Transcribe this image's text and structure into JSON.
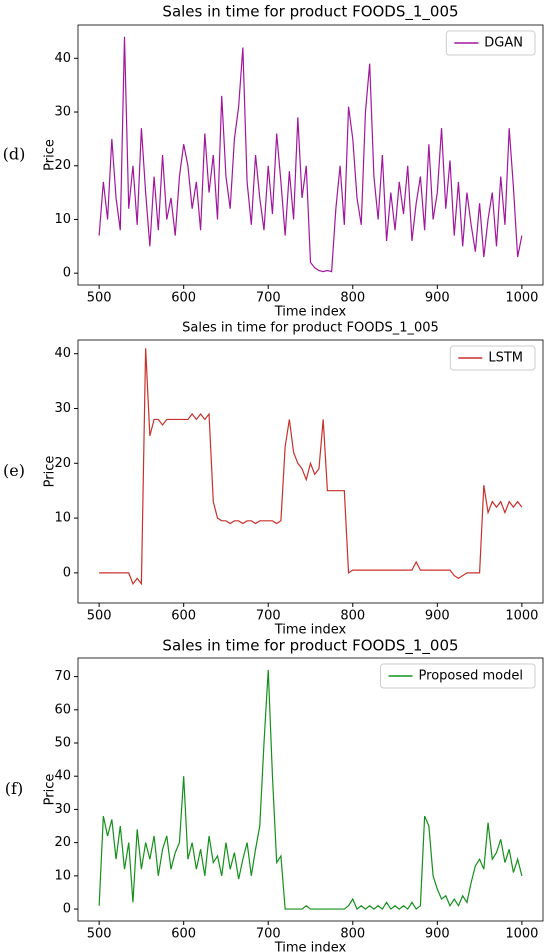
{
  "chart_data": [
    {
      "type": "line",
      "panel_label": "(d)",
      "title": "Sales in time for product FOODS_1_005",
      "x_label": "Time index",
      "y_label": "Price",
      "x": [
        500,
        505,
        510,
        515,
        520,
        525,
        530,
        535,
        540,
        545,
        550,
        555,
        560,
        565,
        570,
        575,
        580,
        585,
        590,
        595,
        600,
        605,
        610,
        615,
        620,
        625,
        630,
        635,
        640,
        645,
        650,
        655,
        660,
        665,
        670,
        675,
        680,
        685,
        690,
        695,
        700,
        705,
        710,
        715,
        720,
        725,
        730,
        735,
        740,
        745,
        750,
        755,
        760,
        765,
        770,
        775,
        780,
        785,
        790,
        795,
        800,
        805,
        810,
        815,
        820,
        825,
        830,
        835,
        840,
        845,
        850,
        855,
        860,
        865,
        870,
        875,
        880,
        885,
        890,
        895,
        900,
        905,
        910,
        915,
        920,
        925,
        930,
        935,
        940,
        945,
        950,
        955,
        960,
        965,
        970,
        975,
        980,
        985,
        990,
        995,
        1000
      ],
      "series": [
        {
          "name": "DGAN",
          "color": "#a0179e",
          "values": [
            7,
            17,
            10,
            25,
            14,
            8,
            44,
            12,
            20,
            9,
            27,
            15,
            5,
            18,
            8,
            22,
            10,
            14,
            7,
            18,
            24,
            20,
            12,
            17,
            8,
            26,
            15,
            22,
            10,
            33,
            18,
            12,
            25,
            31,
            42,
            17,
            9,
            22,
            14,
            8,
            20,
            11,
            26,
            17,
            7,
            19,
            10,
            29,
            14,
            20,
            2,
            1,
            0.5,
            0.3,
            0.5,
            0.3,
            12,
            20,
            9,
            31,
            25,
            14,
            9,
            30,
            39,
            18,
            10,
            22,
            6,
            15,
            8,
            17,
            11,
            20,
            6,
            13,
            18,
            8,
            24,
            10,
            15,
            27,
            12,
            21,
            7,
            17,
            5,
            15,
            9,
            4,
            13,
            3,
            10,
            15,
            5,
            18,
            9,
            27,
            16,
            3,
            7
          ]
        }
      ],
      "xlim": [
        475,
        1025
      ],
      "xticks": [
        500,
        600,
        700,
        800,
        900,
        1000
      ],
      "ylim": [
        -2.2,
        46.2
      ],
      "yticks": [
        0,
        10,
        20,
        30,
        40
      ],
      "legend": "upper right"
    },
    {
      "type": "line",
      "panel_label": "(e)",
      "title": "Sales in time for product FOODS_1_005",
      "x_label": "Time index",
      "y_label": "Price",
      "x": [
        500,
        505,
        510,
        515,
        520,
        525,
        530,
        535,
        540,
        545,
        550,
        555,
        560,
        565,
        570,
        575,
        580,
        585,
        590,
        595,
        600,
        605,
        610,
        615,
        620,
        625,
        630,
        635,
        640,
        645,
        650,
        655,
        660,
        665,
        670,
        675,
        680,
        685,
        690,
        695,
        700,
        705,
        710,
        715,
        720,
        725,
        730,
        735,
        740,
        745,
        750,
        755,
        760,
        765,
        770,
        775,
        780,
        785,
        790,
        795,
        800,
        805,
        810,
        815,
        820,
        825,
        830,
        835,
        840,
        845,
        850,
        855,
        860,
        865,
        870,
        875,
        880,
        885,
        890,
        895,
        900,
        905,
        910,
        915,
        920,
        925,
        930,
        935,
        940,
        945,
        950,
        955,
        960,
        965,
        970,
        975,
        980,
        985,
        990,
        995,
        1000
      ],
      "series": [
        {
          "name": "LSTM",
          "color": "#c8302b",
          "values": [
            0,
            0,
            0,
            0,
            0,
            0,
            0,
            0,
            -2,
            -1,
            -2,
            41,
            25,
            28,
            28,
            27,
            28,
            28,
            28,
            28,
            28,
            28,
            29,
            28,
            29,
            28,
            29,
            13,
            10,
            9.5,
            9.5,
            9,
            9.5,
            9.5,
            9,
            9.5,
            9.5,
            9,
            9.5,
            9.5,
            9.5,
            9.5,
            9,
            9.5,
            23,
            28,
            22,
            20,
            19,
            17,
            20,
            18,
            19,
            28,
            15,
            15,
            15,
            15,
            15,
            0,
            0.5,
            0.5,
            0.5,
            0.5,
            0.5,
            0.5,
            0.5,
            0.5,
            0.5,
            0.5,
            0.5,
            0.5,
            0.5,
            0.5,
            0.5,
            2,
            0.5,
            0.5,
            0.5,
            0.5,
            0.5,
            0.5,
            0.5,
            0.5,
            -0.5,
            -1,
            -0.5,
            0,
            0,
            0,
            0,
            16,
            11,
            13,
            12,
            13,
            11,
            13,
            12,
            13,
            12
          ]
        }
      ],
      "xlim": [
        475,
        1025
      ],
      "xticks": [
        500,
        600,
        700,
        800,
        900,
        1000
      ],
      "ylim": [
        -5.5,
        42.5
      ],
      "yticks": [
        0,
        10,
        20,
        30,
        40
      ],
      "legend": "upper right"
    },
    {
      "type": "line",
      "panel_label": "(f)",
      "title": "Sales in time for product FOODS_1_005",
      "x_label": "Time index",
      "y_label": "Price",
      "x": [
        500,
        505,
        510,
        515,
        520,
        525,
        530,
        535,
        540,
        545,
        550,
        555,
        560,
        565,
        570,
        575,
        580,
        585,
        590,
        595,
        600,
        605,
        610,
        615,
        620,
        625,
        630,
        635,
        640,
        645,
        650,
        655,
        660,
        665,
        670,
        675,
        680,
        685,
        690,
        695,
        700,
        705,
        710,
        715,
        720,
        725,
        730,
        735,
        740,
        745,
        750,
        755,
        760,
        765,
        770,
        775,
        780,
        785,
        790,
        795,
        800,
        805,
        810,
        815,
        820,
        825,
        830,
        835,
        840,
        845,
        850,
        855,
        860,
        865,
        870,
        875,
        880,
        885,
        890,
        895,
        900,
        905,
        910,
        915,
        920,
        925,
        930,
        935,
        940,
        945,
        950,
        955,
        960,
        965,
        970,
        975,
        980,
        985,
        990,
        995,
        1000
      ],
      "series": [
        {
          "name": "Proposed model",
          "color": "#14901b",
          "values": [
            1,
            28,
            22,
            27,
            15,
            25,
            12,
            20,
            2,
            24,
            12,
            20,
            15,
            22,
            10,
            18,
            22,
            12,
            17,
            20,
            40,
            15,
            20,
            12,
            18,
            10,
            22,
            14,
            16,
            10,
            20,
            12,
            17,
            9,
            15,
            20,
            10,
            18,
            25,
            50,
            72,
            40,
            14,
            16,
            0,
            0,
            0,
            0,
            0,
            1,
            0,
            0,
            0,
            0,
            0,
            0,
            0,
            0,
            0,
            1,
            3,
            0,
            1,
            0,
            1,
            0,
            1,
            0,
            2,
            0,
            1,
            0,
            1,
            0,
            2,
            0,
            1,
            28,
            25,
            10,
            6,
            3,
            4,
            1,
            3,
            1,
            4,
            2,
            8,
            13,
            15,
            12,
            26,
            15,
            17,
            21,
            14,
            18,
            11,
            15,
            10
          ]
        }
      ],
      "xlim": [
        475,
        1025
      ],
      "xticks": [
        500,
        600,
        700,
        800,
        900,
        1000
      ],
      "ylim": [
        -3.6,
        75.6
      ],
      "yticks": [
        0,
        10,
        20,
        30,
        40,
        50,
        60,
        70
      ],
      "legend": "upper right"
    }
  ]
}
